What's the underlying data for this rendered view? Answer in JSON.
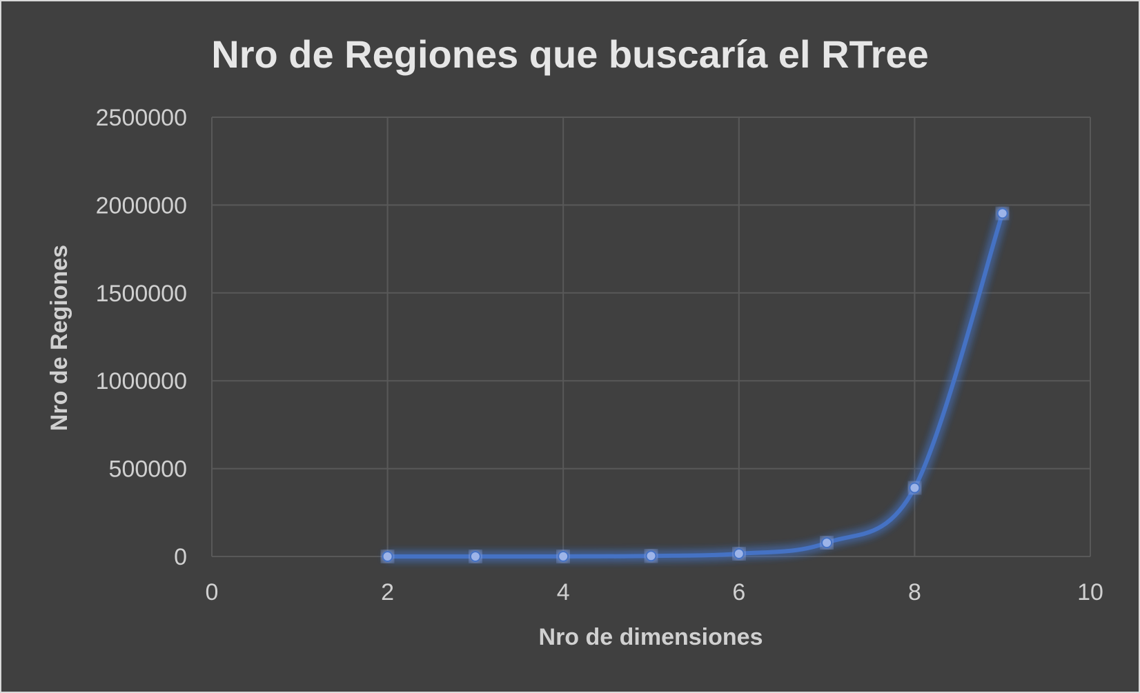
{
  "chart_data": {
    "type": "scatter",
    "title": "Nro de Regiones que buscaría el RTree",
    "xlabel": "Nro de dimensiones",
    "ylabel": "Nro de Regiones",
    "xlim": [
      0,
      10
    ],
    "ylim": [
      0,
      2500000
    ],
    "x_ticks": [
      0,
      2,
      4,
      6,
      8,
      10
    ],
    "y_ticks": [
      0,
      500000,
      1000000,
      1500000,
      2000000,
      2500000
    ],
    "smooth_line": true,
    "markers": true,
    "grid": true,
    "legend": "none",
    "series": [
      {
        "x": [
          2,
          3,
          4,
          5,
          6,
          7,
          8,
          9
        ],
        "y": [
          25,
          125,
          625,
          3125,
          15625,
          78125,
          390625,
          1953125
        ]
      }
    ]
  },
  "colors": {
    "background": "#404040",
    "series": "#4472C4",
    "marker": "#9DB4E8",
    "gridline": "#595959",
    "text": "#d0d0d0"
  }
}
